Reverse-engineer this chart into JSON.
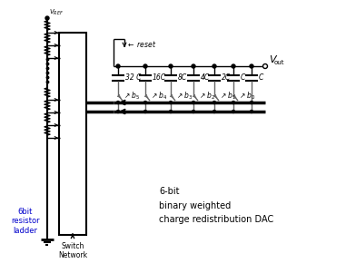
{
  "bg_color": "#ffffff",
  "line_color": "#000000",
  "gray_color": "#666666",
  "blue_color": "#0000cc",
  "capacitor_labels": [
    "32 C",
    "16C",
    "8C",
    "4C",
    "2C",
    "C",
    "C"
  ],
  "switch_labels": [
    "5",
    "4",
    "3",
    "2",
    "1",
    "0"
  ],
  "ladder_label": "6bit\nresistor\nladder",
  "switch_network_label": "Switch\nNetwork",
  "dac_label": "6-bit\nbinary weighted\ncharge redistribution DAC",
  "vref_label": "V_{REF}",
  "vout_label": "V_{out}",
  "reset_label": "reset"
}
